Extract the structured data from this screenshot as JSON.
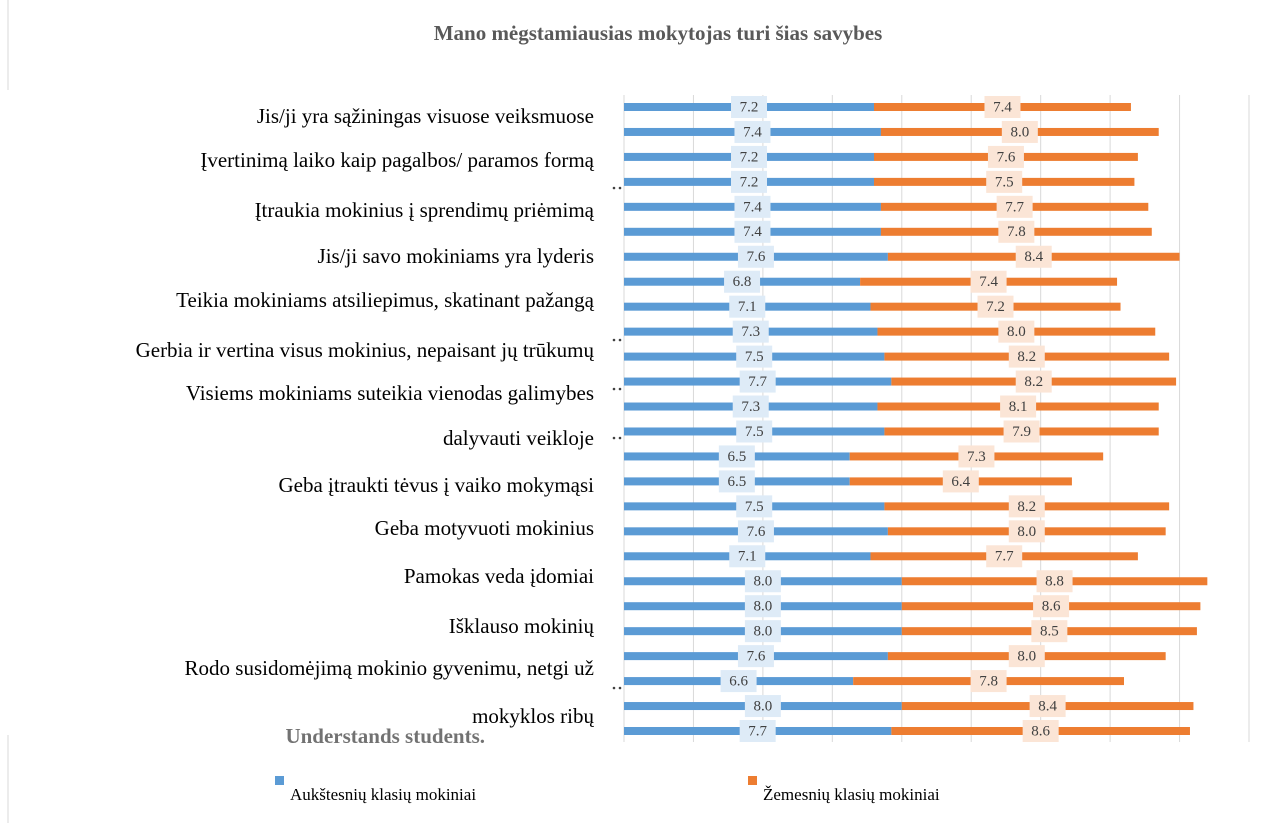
{
  "chart_data": {
    "type": "bar",
    "orientation": "horizontal",
    "stacked": true,
    "title": "Mano mėgstamiausias mokytojas turi šias savybes",
    "annotations": [
      "Jis/ji yra sąžiningas visuose veiksmuose",
      "Įvertinimą laiko kaip pagalbos/ paramos formą",
      "Įtraukia mokinius į sprendimų priėmimą",
      "Jis/ji savo mokiniams yra lyderis",
      "Teikia mokiniams atsiliepimus, skatinant pažangą",
      "Gerbia ir vertina visus mokinius, nepaisant jų trūkumų",
      "Visiems mokiniams suteikia vienodas galimybes",
      "dalyvauti veikloje",
      "Geba įtraukti tėvus į vaiko mokymąsi",
      "Geba motyvuoti mokinius",
      "Pamokas veda įdomiai",
      "Išklauso mokinių",
      "Rodo susidomėjimą mokinio gyvenimu, netgi už",
      "mokyklos ribų",
      "Understands students."
    ],
    "series": [
      {
        "name": "Aukštesnių klasių mokiniai",
        "color": "#5b9bd5",
        "values": [
          7.2,
          7.4,
          7.2,
          7.2,
          7.4,
          7.4,
          7.6,
          6.8,
          7.1,
          7.3,
          7.5,
          7.7,
          7.3,
          7.5,
          6.5,
          6.5,
          7.5,
          7.6,
          7.1,
          8.0,
          8.0,
          8.0,
          7.6,
          6.6,
          8.0,
          7.7
        ],
        "value_labels": [
          "7.2",
          "7.4",
          "7.2",
          "7.2",
          "7.4",
          "7.4",
          "7.6",
          "6.8",
          "7.1",
          "7.3",
          "7.5",
          "7.7",
          "7.3",
          "7.5",
          "6.5",
          "6.5",
          "7.5",
          "7.6",
          "7.1",
          "8.0",
          "8.0",
          "8.0",
          "7.6",
          "6.6",
          "8.0",
          "7.7"
        ]
      },
      {
        "name": "Žemesnių klasių  mokiniai",
        "color": "#ed7d31",
        "values": [
          7.4,
          8.0,
          7.6,
          7.5,
          7.7,
          7.8,
          8.4,
          7.4,
          7.2,
          8.0,
          8.2,
          8.2,
          8.1,
          7.9,
          7.3,
          6.4,
          8.2,
          8.0,
          7.7,
          8.8,
          8.6,
          8.5,
          8.0,
          7.8,
          8.4,
          8.6
        ],
        "value_labels": [
          "7.4",
          "8.0",
          "7.6",
          "7.5",
          "7.7",
          "7.8",
          "8.4",
          "7.4",
          "7.2",
          "8.0",
          "8.2",
          "8.2",
          "8.1",
          "7.9",
          "7.3",
          "6.4",
          "8.2",
          "8.0",
          "7.7",
          "8.8",
          "8.6",
          "8.5",
          "8.0",
          "7.8",
          "8.4",
          "8.6"
        ]
      }
    ],
    "xlim": [
      0,
      18
    ],
    "xticks": [
      0,
      2,
      4,
      6,
      8,
      10,
      12,
      14,
      16,
      18
    ],
    "grid": true,
    "legend": "bottom"
  }
}
